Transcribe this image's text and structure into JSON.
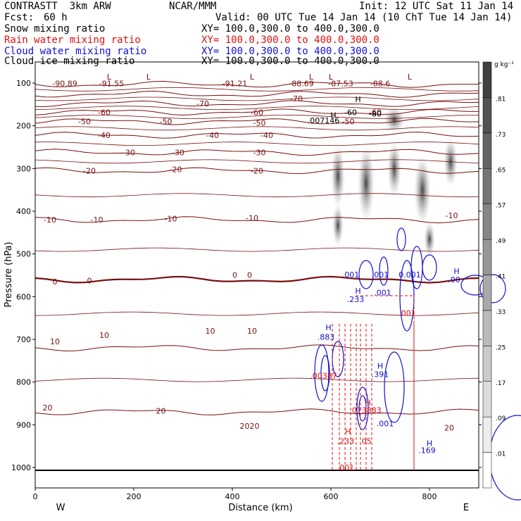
{
  "header": {
    "model": "CONTRASTT  3km ARW",
    "org": "NCAR/MMM",
    "init": "Init: 12 UTC Sat 11 Jan 14",
    "fcst_label": "Fcst:",
    "fcst_value": "60 h",
    "valid": "Valid: 00 UTC Tue 14 Jan 14 (10 ChT Tue 14 Jan 14)",
    "fields": [
      {
        "name": "Snow mixing ratio",
        "xy": "XY= 100.0,300.0 to 400.0,300.0",
        "color": "#000000"
      },
      {
        "name": "Rain water mixing ratio",
        "xy": "XY= 100.0,300.0 to 400.0,300.0",
        "color": "#e01010"
      },
      {
        "name": "Cloud water mixing ratio",
        "xy": "XY= 100.0,300.0 to 400.0,300.0",
        "color": "#1010d0"
      },
      {
        "name": "Cloud ice mixing ratio",
        "xy": "XY= 100.0,300.0 to 400.0,300.0",
        "color": "#000000"
      }
    ]
  },
  "chart_data": {
    "type": "cross-section",
    "xlabel": "Distance (km)",
    "ylabel": "Pressure (hPa)",
    "xlim": [
      0,
      900
    ],
    "ylim": [
      1050,
      50
    ],
    "xticks": [
      "0",
      "200",
      "400",
      "600",
      "800"
    ],
    "yticks": [
      "100",
      "200",
      "300",
      "400",
      "500",
      "600",
      "700",
      "800",
      "900",
      "1000"
    ],
    "west_label": "W",
    "east_label": "E",
    "colorbar": {
      "unit": "g kg⁻¹",
      "levels": [
        ".01",
        ".09",
        ".17",
        ".25",
        ".33",
        ".41",
        ".49",
        ".57",
        ".65",
        ".73",
        ".81"
      ]
    },
    "temperature_isotherms": [
      {
        "value": -90,
        "p": 103
      },
      {
        "value": -80,
        "p": 126
      },
      {
        "value": -70,
        "p": 148
      },
      {
        "value": -60,
        "p": 168
      },
      {
        "value": -50,
        "p": 190
      },
      {
        "value": -40,
        "p": 222
      },
      {
        "value": -30,
        "p": 262
      },
      {
        "value": -20,
        "p": 305
      },
      {
        "value": -10,
        "p": 420
      },
      {
        "value": 0,
        "p": 560
      },
      {
        "value": 10,
        "p": 720
      },
      {
        "value": 20,
        "p": 870
      }
    ],
    "temperature_labels": [
      {
        "text": "-90.89",
        "x": 60,
        "p": 101
      },
      {
        "text": "-91.55",
        "x": 155,
        "p": 101
      },
      {
        "text": "-91.21",
        "x": 405,
        "p": 101
      },
      {
        "text": "-88.69",
        "x": 540,
        "p": 101
      },
      {
        "text": "-87.53",
        "x": 620,
        "p": 101
      },
      {
        "text": "-88.6",
        "x": 700,
        "p": 101
      },
      {
        "text": "-70",
        "x": 340,
        "p": 148
      },
      {
        "text": "-70",
        "x": 530,
        "p": 136
      },
      {
        "text": "-60",
        "x": 140,
        "p": 168
      },
      {
        "text": "-60",
        "x": 450,
        "p": 168
      },
      {
        "text": "-60",
        "x": 690,
        "p": 168
      },
      {
        "text": "-50",
        "x": 100,
        "p": 190
      },
      {
        "text": "-50",
        "x": 265,
        "p": 190
      },
      {
        "text": "-50",
        "x": 455,
        "p": 193
      },
      {
        "text": "-50",
        "x": 635,
        "p": 190
      },
      {
        "text": "-40",
        "x": 140,
        "p": 222
      },
      {
        "text": "-40",
        "x": 360,
        "p": 222
      },
      {
        "text": "-40",
        "x": 470,
        "p": 222
      },
      {
        "text": "-30",
        "x": 190,
        "p": 262
      },
      {
        "text": "-30",
        "x": 290,
        "p": 262
      },
      {
        "text": "-30",
        "x": 455,
        "p": 262
      },
      {
        "text": "-20",
        "x": 110,
        "p": 305
      },
      {
        "text": "-20",
        "x": 285,
        "p": 302
      },
      {
        "text": "-20",
        "x": 450,
        "p": 305
      },
      {
        "text": "-10",
        "x": 30,
        "p": 420
      },
      {
        "text": "-10",
        "x": 125,
        "p": 420
      },
      {
        "text": "-10",
        "x": 275,
        "p": 417
      },
      {
        "text": "-10",
        "x": 440,
        "p": 416
      },
      {
        "text": "-10",
        "x": 845,
        "p": 410
      },
      {
        "text": "0",
        "x": 40,
        "p": 565
      },
      {
        "text": "0",
        "x": 110,
        "p": 562
      },
      {
        "text": "0",
        "x": 405,
        "p": 549
      },
      {
        "text": "0",
        "x": 435,
        "p": 549
      },
      {
        "text": "10",
        "x": 40,
        "p": 705
      },
      {
        "text": "10",
        "x": 140,
        "p": 690
      },
      {
        "text": "10",
        "x": 355,
        "p": 680
      },
      {
        "text": "10",
        "x": 440,
        "p": 680
      },
      {
        "text": "20",
        "x": 25,
        "p": 860
      },
      {
        "text": "20",
        "x": 255,
        "p": 867
      },
      {
        "text": "20",
        "x": 425,
        "p": 903
      },
      {
        "text": "20",
        "x": 445,
        "p": 903
      },
      {
        "text": "20",
        "x": 840,
        "p": 907
      }
    ],
    "low_markers": [
      {
        "text": "L",
        "x": 150,
        "p": 85
      },
      {
        "text": "L",
        "x": 230,
        "p": 85
      },
      {
        "text": "L",
        "x": 440,
        "p": 85
      },
      {
        "text": "L",
        "x": 560,
        "p": 85
      },
      {
        "text": "L",
        "x": 600,
        "p": 85
      },
      {
        "text": "L",
        "x": 760,
        "p": 85
      }
    ],
    "value_annotations": [
      {
        "text": "H",
        "x": 605,
        "p": 175,
        "color": "#000000"
      },
      {
        "text": ".007146",
        "x": 585,
        "p": 187,
        "color": "#000000"
      },
      {
        "text": "-60",
        "x": 640,
        "p": 168,
        "color": "#000000"
      },
      {
        "text": "-80",
        "x": 690,
        "p": 172,
        "color": "#000000"
      },
      {
        "text": "H",
        "x": 655,
        "p": 138,
        "color": "#000000"
      },
      {
        "text": ".001",
        "x": 640,
        "p": 548,
        "color": "#1010d0"
      },
      {
        "text": ".001",
        "x": 700,
        "p": 548,
        "color": "#1010d0"
      },
      {
        "text": "0.001",
        "x": 760,
        "p": 548,
        "color": "#1010d0"
      },
      {
        "text": "H",
        "x": 855,
        "p": 540,
        "color": "#1010d0"
      },
      {
        "text": ".00",
        "x": 850,
        "p": 560,
        "color": "#1010d0"
      },
      {
        "text": "H",
        "x": 655,
        "p": 586,
        "color": "#1010d0"
      },
      {
        "text": ".233",
        "x": 650,
        "p": 606,
        "color": "#1010d0"
      },
      {
        "text": ".001",
        "x": 705,
        "p": 590,
        "color": "#1010d0"
      },
      {
        "text": ".001",
        "x": 755,
        "p": 638,
        "color": "#e01010"
      },
      {
        "text": "H",
        "x": 595,
        "p": 672,
        "color": "#1010d0"
      },
      {
        "text": ".883",
        "x": 590,
        "p": 694,
        "color": "#1010d0"
      },
      {
        "text": ".00387",
        "x": 585,
        "p": 785,
        "color": "#e01010"
      },
      {
        "text": "H",
        "x": 700,
        "p": 762,
        "color": "#1010d0"
      },
      {
        "text": ".391",
        "x": 700,
        "p": 782,
        "color": "#1010d0"
      },
      {
        "text": "H",
        "x": 675,
        "p": 848,
        "color": "#e01010"
      },
      {
        "text": ".073883",
        "x": 670,
        "p": 866,
        "color": "#e01010"
      },
      {
        "text": ".001",
        "x": 710,
        "p": 897,
        "color": "#1010d0"
      },
      {
        "text": "H",
        "x": 635,
        "p": 915,
        "color": "#e01010"
      },
      {
        "text": ".233",
        "x": 630,
        "p": 938,
        "color": "#e01010"
      },
      {
        "text": ".05",
        "x": 670,
        "p": 938,
        "color": "#e01010"
      },
      {
        "text": "H",
        "x": 800,
        "p": 943,
        "color": "#1010d0"
      },
      {
        "text": ".169",
        "x": 795,
        "p": 960,
        "color": "#1010d0"
      },
      {
        "text": ".001",
        "x": 630,
        "p": 1000,
        "color": "#e01010"
      }
    ]
  }
}
